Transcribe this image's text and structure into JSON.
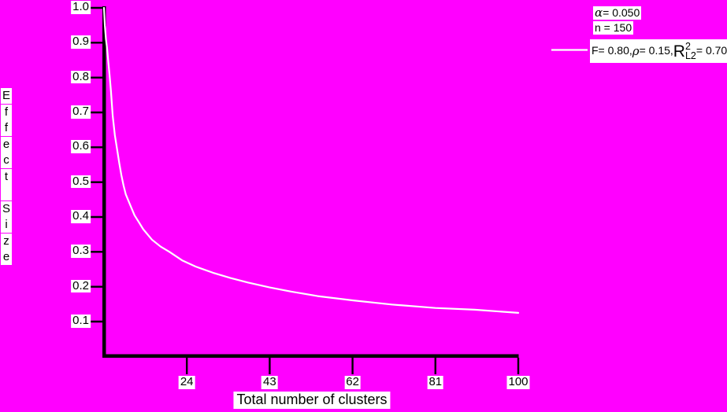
{
  "chart_data": {
    "type": "line",
    "title": "",
    "xlabel": "Total number of clusters",
    "ylabel": "Effect Size",
    "x_ticks": [
      24,
      43,
      62,
      81,
      100
    ],
    "y_ticks": [
      "1.0",
      "0.9",
      "0.8",
      "0.7",
      "0.6",
      "0.5",
      "0.4",
      "0.3",
      "0.2",
      "0.1"
    ],
    "xlim": [
      5,
      100
    ],
    "ylim": [
      0,
      1.0
    ],
    "grid": false,
    "legend_position": "top-right",
    "annotations": [
      "α = 0.050",
      "n = 150"
    ],
    "series": [
      {
        "name": "F= 0.80, ρ = 0.15, R²L2 = 0.70",
        "color": "#ffffff",
        "points": [
          [
            5,
            1.0
          ],
          [
            5.2,
            0.95
          ],
          [
            5.45,
            0.91
          ],
          [
            5.7,
            0.885
          ],
          [
            6,
            0.845
          ],
          [
            6.3,
            0.805
          ],
          [
            6.6,
            0.76
          ],
          [
            7,
            0.69
          ],
          [
            7.5,
            0.635
          ],
          [
            8,
            0.595
          ],
          [
            8.5,
            0.555
          ],
          [
            9,
            0.52
          ],
          [
            9.5,
            0.49
          ],
          [
            10,
            0.465
          ],
          [
            11,
            0.435
          ],
          [
            12,
            0.405
          ],
          [
            13,
            0.385
          ],
          [
            14,
            0.365
          ],
          [
            16,
            0.335
          ],
          [
            18,
            0.315
          ],
          [
            20,
            0.3
          ],
          [
            23,
            0.275
          ],
          [
            26,
            0.258
          ],
          [
            30,
            0.24
          ],
          [
            34,
            0.225
          ],
          [
            38,
            0.212
          ],
          [
            43,
            0.198
          ],
          [
            48,
            0.186
          ],
          [
            54,
            0.173
          ],
          [
            62,
            0.161
          ],
          [
            71,
            0.149
          ],
          [
            81,
            0.139
          ],
          [
            90,
            0.134
          ],
          [
            100,
            0.125
          ]
        ]
      }
    ]
  },
  "axis_titles": {
    "x": "Total number of clusters",
    "y": "Effect Size"
  },
  "legend": {
    "alpha_symbol": "α",
    "alpha_rest": " = 0.050",
    "n_label": "n = 150",
    "series": {
      "part1": "F= 0.80,",
      "rho": "ρ",
      "part2": " = 0.15,",
      "r": "R",
      "sup": "2",
      "sub": "L2",
      "part3": "= 0.70"
    }
  },
  "colors": {
    "background": "#ff00ff",
    "curve": "#ffffff",
    "axis": "#000000",
    "label_background": "#ffffff",
    "text": "#000000"
  }
}
